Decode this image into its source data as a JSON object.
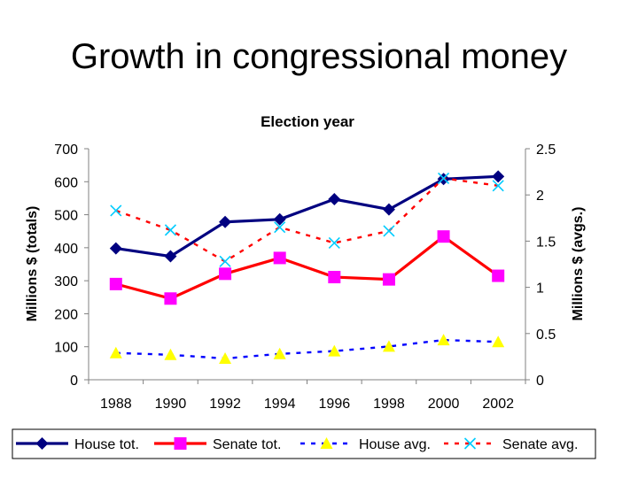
{
  "slide_title": "Growth in congressional money",
  "chart_data": {
    "type": "line",
    "title": "Election year",
    "xlabel": "",
    "ylabel_left": "Millions $ (totals)",
    "ylabel_right": "Millions $ (avgs.)",
    "categories": [
      "1988",
      "1990",
      "1992",
      "1994",
      "1996",
      "1998",
      "2000",
      "2002"
    ],
    "ylim_left": [
      0,
      700
    ],
    "yticks_left": [
      0,
      100,
      200,
      300,
      400,
      500,
      600,
      700
    ],
    "ylim_right": [
      0,
      2.5
    ],
    "yticks_right": [
      "0",
      "0.5",
      "1",
      "1.5",
      "2",
      "2.5"
    ],
    "yticks_right_values": [
      0,
      0.5,
      1,
      1.5,
      2,
      2.5
    ],
    "grid": false,
    "legend_position": "bottom",
    "series": [
      {
        "name": "House tot.",
        "axis": "left",
        "values": [
          398,
          374,
          478,
          486,
          547,
          516,
          608,
          616
        ],
        "color": "#000080",
        "dash": "solid",
        "marker": "diamond"
      },
      {
        "name": "Senate tot.",
        "axis": "left",
        "values": [
          290,
          246,
          321,
          369,
          311,
          304,
          434,
          315
        ],
        "color": "#FF0000",
        "dash": "solid",
        "marker": "square",
        "marker_color": "#FF00FF"
      },
      {
        "name": "House avg.",
        "axis": "right",
        "values": [
          0.29,
          0.27,
          0.23,
          0.28,
          0.31,
          0.36,
          0.43,
          0.41
        ],
        "color": "#0000FF",
        "dash": "dashed",
        "marker": "triangle",
        "marker_color": "#FFFF00"
      },
      {
        "name": "Senate avg.",
        "axis": "right",
        "values": [
          1.83,
          1.62,
          1.28,
          1.65,
          1.48,
          1.61,
          2.18,
          2.1
        ],
        "color": "#FF0000",
        "dash": "dashed",
        "marker": "x",
        "marker_color": "#00CCFF"
      }
    ]
  }
}
